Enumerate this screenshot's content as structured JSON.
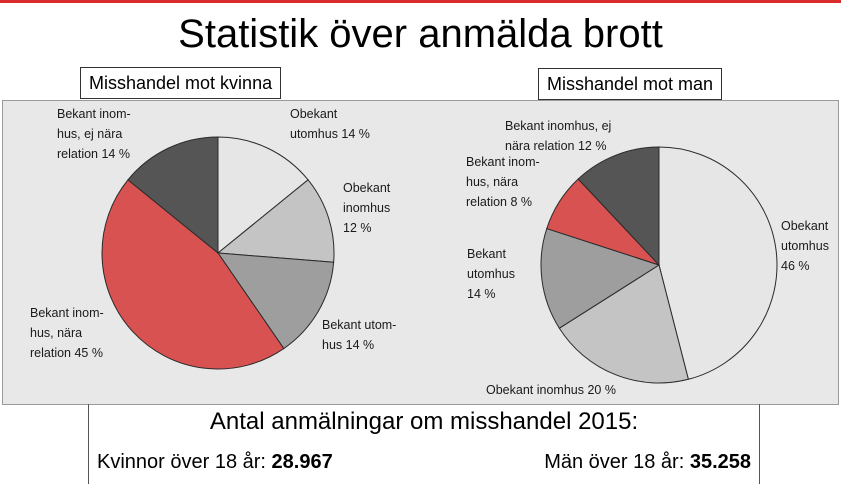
{
  "title": "Statistik över anmälda brott",
  "summary": {
    "heading": "Antal anmälningar om misshandel 2015:",
    "women_label": "Kvinnor över 18 år:",
    "women_value": "28.967",
    "men_label": "Män över 18 år:",
    "men_value": "35.258"
  },
  "colors": {
    "accent": "#d92b2b",
    "panel": "#e8e8e8",
    "red": "#d95252",
    "dark": "#555555",
    "mid": "#9e9e9e",
    "light": "#c4c4c4",
    "lightest": "#e6e6e6"
  },
  "chart_data": [
    {
      "type": "pie",
      "title": "Misshandel mot kvinna",
      "slices": [
        {
          "label": [
            "Obekant",
            "utomhus 14 %"
          ],
          "value": 14,
          "color": "#e6e6e6"
        },
        {
          "label": [
            "Obekant",
            "inomhus",
            "12 %"
          ],
          "value": 12,
          "color": "#c4c4c4"
        },
        {
          "label": [
            "Bekant utom-",
            "hus 14 %"
          ],
          "value": 14,
          "color": "#9e9e9e"
        },
        {
          "label": [
            "Bekant inom-",
            "hus, nära",
            "relation 45 %"
          ],
          "value": 45,
          "color": "#d95252"
        },
        {
          "label": [
            "Bekant inom-",
            "hus, ej nära",
            "relation 14 %"
          ],
          "value": 14,
          "color": "#555555"
        }
      ]
    },
    {
      "type": "pie",
      "title": "Misshandel mot man",
      "slices": [
        {
          "label": [
            "Obekant",
            "utomhus",
            "46 %"
          ],
          "value": 46,
          "color": "#e6e6e6"
        },
        {
          "label": [
            "Obekant inomhus 20 %"
          ],
          "value": 20,
          "color": "#c4c4c4"
        },
        {
          "label": [
            "Bekant",
            "utomhus",
            "14 %"
          ],
          "value": 14,
          "color": "#9e9e9e"
        },
        {
          "label": [
            "Bekant inom-",
            "hus, nära",
            "relation 8 %"
          ],
          "value": 8,
          "color": "#d95252"
        },
        {
          "label": [
            "Bekant inomhus, ej",
            "nära relation 12 %"
          ],
          "value": 12,
          "color": "#555555"
        }
      ]
    }
  ]
}
